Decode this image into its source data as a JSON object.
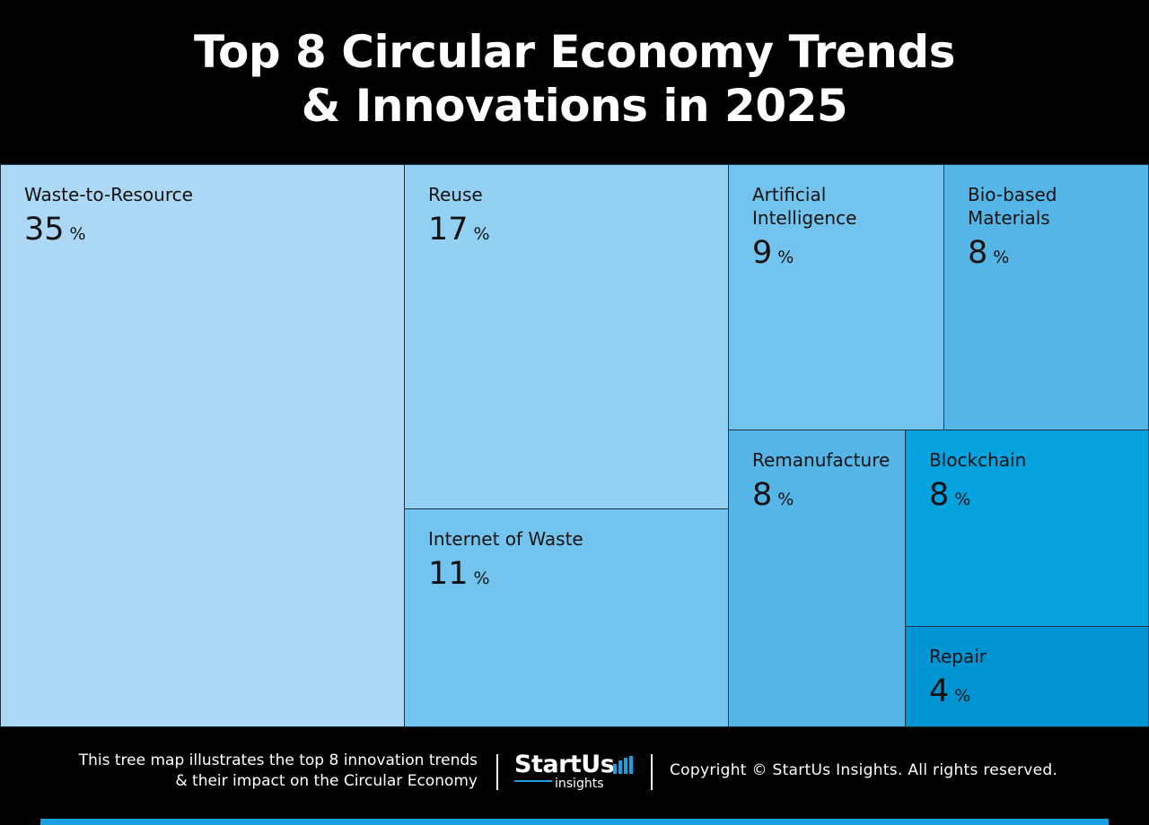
{
  "header": {
    "title_line1": "Top 8 Circular Economy Trends",
    "title_line2": "& Innovations in 2025"
  },
  "chart_data": {
    "type": "treemap",
    "title": "Top 8 Circular Economy Trends & Innovations in 2025",
    "unit": "%",
    "items": [
      {
        "label": "Waste-to-Resource",
        "value": 35,
        "color": "#add8f5"
      },
      {
        "label": "Reuse",
        "value": 17,
        "color": "#92d1f3"
      },
      {
        "label": "Internet of Waste",
        "value": 11,
        "color": "#72c4ee"
      },
      {
        "label": "Artificial Intelligence",
        "value": 9,
        "color": "#72c4ee"
      },
      {
        "label": "Bio-based Materials",
        "value": 8,
        "color": "#55b5e7"
      },
      {
        "label": "Remanufacture",
        "value": 8,
        "color": "#55b5e7"
      },
      {
        "label": "Blockchain",
        "value": 8,
        "color": "#04a2de"
      },
      {
        "label": "Repair",
        "value": 4,
        "color": "#0194d2"
      }
    ]
  },
  "footer": {
    "description_line1": "This tree map illustrates the top 8 innovation trends",
    "description_line2": "& their impact on the Circular Economy",
    "logo_word": "StartUs",
    "logo_sub": "insights",
    "copyright": "Copyright © StartUs Insights. All rights reserved.",
    "accent_color": "#1aa0e0"
  }
}
